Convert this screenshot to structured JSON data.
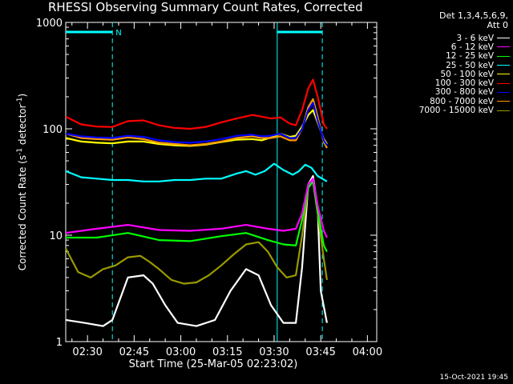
{
  "chart_data": {
    "type": "line",
    "title": "RHESSI Observing Summary Count Rates, Corrected",
    "xlabel": "Start Time (25-Mar-05 02:23:02)",
    "ylabel_parts": [
      "Corrected Count Rate (s",
      "-1",
      " detector",
      "-1",
      ")"
    ],
    "yscale": "log",
    "ylim": [
      1,
      1000
    ],
    "xlim_minutes_after_0223": [
      0,
      100
    ],
    "x_tick_labels": [
      "02:30",
      "02:45",
      "03:00",
      "03:15",
      "03:30",
      "03:45",
      "04:00"
    ],
    "y_tick_labels": [
      "1",
      "10",
      "100",
      "1000"
    ],
    "legend_header": [
      "Det 1,3,4,5,6,9,",
      "Att 0"
    ],
    "flag_label": "N",
    "flag_bars_minutes": [
      [
        0,
        15
      ],
      [
        68,
        82.5
      ]
    ],
    "dashed_lines_minutes": [
      15,
      82.5
    ],
    "solid_line_minutes": [
      68
    ],
    "series": [
      {
        "name": "3 - 6 keV",
        "color": "#ffffff",
        "points": [
          [
            0,
            1.6
          ],
          [
            6,
            1.5
          ],
          [
            12,
            1.4
          ],
          [
            15,
            1.6
          ],
          [
            20,
            4.0
          ],
          [
            25,
            4.2
          ],
          [
            28,
            3.5
          ],
          [
            32,
            2.2
          ],
          [
            36,
            1.5
          ],
          [
            42,
            1.4
          ],
          [
            48,
            1.6
          ],
          [
            53,
            3.0
          ],
          [
            58,
            4.8
          ],
          [
            62,
            4.2
          ],
          [
            66,
            2.2
          ],
          [
            70,
            1.5
          ],
          [
            74,
            1.5
          ],
          [
            76,
            5
          ],
          [
            78,
            30
          ],
          [
            79.5,
            36
          ],
          [
            81,
            18
          ],
          [
            82,
            3
          ],
          [
            84,
            1.5
          ]
        ]
      },
      {
        "name": "6 - 12 keV",
        "color": "#ff00ff",
        "points": [
          [
            0,
            10.5
          ],
          [
            10,
            11.5
          ],
          [
            20,
            12.5
          ],
          [
            30,
            11.2
          ],
          [
            40,
            11.0
          ],
          [
            50,
            11.5
          ],
          [
            58,
            12.5
          ],
          [
            65,
            11.5
          ],
          [
            70,
            11.0
          ],
          [
            74,
            11.5
          ],
          [
            76,
            16
          ],
          [
            78,
            30
          ],
          [
            79.5,
            34
          ],
          [
            81,
            19
          ],
          [
            83,
            11
          ],
          [
            84,
            9.5
          ]
        ]
      },
      {
        "name": "12 - 25 keV",
        "color": "#00ff00",
        "points": [
          [
            0,
            9.5
          ],
          [
            10,
            9.5
          ],
          [
            20,
            10.5
          ],
          [
            30,
            9.0
          ],
          [
            40,
            8.8
          ],
          [
            50,
            9.8
          ],
          [
            58,
            10.5
          ],
          [
            65,
            9.0
          ],
          [
            70,
            8.2
          ],
          [
            74,
            8.0
          ],
          [
            76,
            14
          ],
          [
            78,
            28
          ],
          [
            79.5,
            32
          ],
          [
            81,
            17
          ],
          [
            83,
            8
          ],
          [
            84,
            7
          ]
        ]
      },
      {
        "name": "25 - 50 keV",
        "color": "#00ffff",
        "points": [
          [
            0,
            40
          ],
          [
            5,
            35
          ],
          [
            10,
            34
          ],
          [
            15,
            33
          ],
          [
            20,
            33
          ],
          [
            25,
            32
          ],
          [
            30,
            32
          ],
          [
            35,
            33
          ],
          [
            40,
            33
          ],
          [
            45,
            34
          ],
          [
            50,
            34
          ],
          [
            55,
            38
          ],
          [
            58,
            40
          ],
          [
            61,
            37
          ],
          [
            64,
            40
          ],
          [
            67,
            47
          ],
          [
            70,
            41
          ],
          [
            73,
            37
          ],
          [
            75,
            40
          ],
          [
            77,
            46
          ],
          [
            79,
            43
          ],
          [
            81,
            36
          ],
          [
            84,
            32
          ]
        ]
      },
      {
        "name": "50 - 100 keV",
        "color": "#ffff00",
        "points": [
          [
            0,
            82
          ],
          [
            5,
            76
          ],
          [
            10,
            74
          ],
          [
            15,
            73
          ],
          [
            20,
            76
          ],
          [
            25,
            76
          ],
          [
            30,
            72
          ],
          [
            35,
            70
          ],
          [
            40,
            69
          ],
          [
            45,
            71
          ],
          [
            50,
            75
          ],
          [
            55,
            79
          ],
          [
            60,
            80
          ],
          [
            63,
            78
          ],
          [
            66,
            83
          ],
          [
            69,
            90
          ],
          [
            72,
            84
          ],
          [
            74,
            86
          ],
          [
            76,
            105
          ],
          [
            78,
            135
          ],
          [
            79.5,
            150
          ],
          [
            81,
            115
          ],
          [
            83,
            80
          ],
          [
            84,
            72
          ]
        ]
      },
      {
        "name": "100 - 300 keV",
        "color": "#ff0000",
        "points": [
          [
            0,
            130
          ],
          [
            5,
            110
          ],
          [
            10,
            105
          ],
          [
            15,
            104
          ],
          [
            20,
            118
          ],
          [
            25,
            120
          ],
          [
            30,
            108
          ],
          [
            35,
            102
          ],
          [
            40,
            100
          ],
          [
            45,
            104
          ],
          [
            50,
            115
          ],
          [
            55,
            125
          ],
          [
            60,
            135
          ],
          [
            63,
            130
          ],
          [
            66,
            125
          ],
          [
            69,
            128
          ],
          [
            72,
            112
          ],
          [
            74,
            108
          ],
          [
            76,
            150
          ],
          [
            78,
            240
          ],
          [
            79.5,
            290
          ],
          [
            81,
            200
          ],
          [
            83,
            110
          ],
          [
            84,
            100
          ]
        ]
      },
      {
        "name": "300 - 800 keV",
        "color": "#0000ff",
        "points": [
          [
            0,
            90
          ],
          [
            5,
            85
          ],
          [
            10,
            83
          ],
          [
            15,
            82
          ],
          [
            20,
            86
          ],
          [
            25,
            84
          ],
          [
            30,
            78
          ],
          [
            35,
            75
          ],
          [
            40,
            74
          ],
          [
            45,
            76
          ],
          [
            50,
            80
          ],
          [
            55,
            86
          ],
          [
            60,
            88
          ],
          [
            63,
            85
          ],
          [
            66,
            86
          ],
          [
            69,
            90
          ],
          [
            72,
            82
          ],
          [
            74,
            82
          ],
          [
            76,
            100
          ],
          [
            78,
            150
          ],
          [
            79.5,
            175
          ],
          [
            81,
            120
          ],
          [
            83,
            78
          ],
          [
            84,
            70
          ]
        ]
      },
      {
        "name": "800 - 7000 keV",
        "color": "#ff9900",
        "points": [
          [
            0,
            90
          ],
          [
            5,
            82
          ],
          [
            10,
            80
          ],
          [
            15,
            79
          ],
          [
            20,
            83
          ],
          [
            25,
            80
          ],
          [
            30,
            74
          ],
          [
            35,
            72
          ],
          [
            40,
            70
          ],
          [
            45,
            72
          ],
          [
            50,
            76
          ],
          [
            55,
            82
          ],
          [
            60,
            85
          ],
          [
            63,
            82
          ],
          [
            66,
            82
          ],
          [
            69,
            85
          ],
          [
            72,
            78
          ],
          [
            74,
            78
          ],
          [
            76,
            100
          ],
          [
            78,
            160
          ],
          [
            79.5,
            190
          ],
          [
            81,
            130
          ],
          [
            83,
            75
          ],
          [
            84,
            66
          ]
        ]
      },
      {
        "name": "7000 - 15000 keV",
        "color": "#999900",
        "points": [
          [
            0,
            7.5
          ],
          [
            4,
            4.5
          ],
          [
            8,
            4.0
          ],
          [
            12,
            4.8
          ],
          [
            16,
            5.2
          ],
          [
            20,
            6.2
          ],
          [
            24,
            6.4
          ],
          [
            27,
            5.6
          ],
          [
            30,
            4.8
          ],
          [
            34,
            3.8
          ],
          [
            38,
            3.5
          ],
          [
            42,
            3.6
          ],
          [
            46,
            4.2
          ],
          [
            50,
            5.2
          ],
          [
            54,
            6.6
          ],
          [
            58,
            8.2
          ],
          [
            62,
            8.6
          ],
          [
            65,
            7.0
          ],
          [
            68,
            5.0
          ],
          [
            71,
            4.0
          ],
          [
            74,
            4.2
          ],
          [
            76,
            10
          ],
          [
            78,
            28
          ],
          [
            79.5,
            32
          ],
          [
            81,
            16
          ],
          [
            83,
            6
          ],
          [
            84,
            3.8
          ]
        ]
      }
    ]
  },
  "footer": {
    "timestamp": "15-Oct-2021 19:45"
  }
}
